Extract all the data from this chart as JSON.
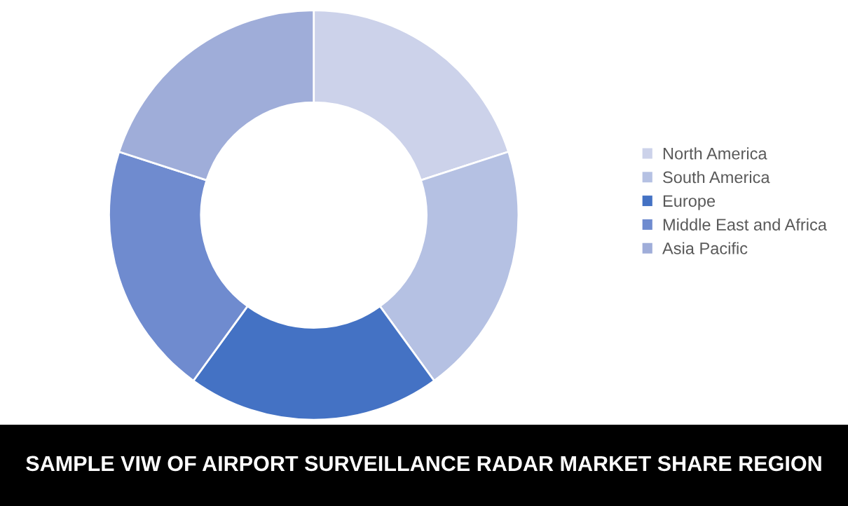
{
  "chart_data": {
    "type": "donut",
    "title": "SAMPLE VIW OF AIRPORT SURVEILLANCE RADAR MARKET SHARE REGION",
    "categories": [
      "North America",
      "South America",
      "Europe",
      "Middle East and Africa",
      "Asia Pacific"
    ],
    "values": [
      20,
      20,
      20,
      20,
      20
    ],
    "colors": [
      "#ccd2ea",
      "#b5c1e3",
      "#4472c4",
      "#6f8bcf",
      "#9fadd9"
    ],
    "legend": "right"
  }
}
